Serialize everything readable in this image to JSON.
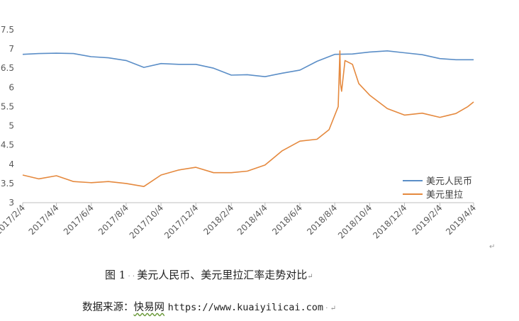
{
  "chart_data": {
    "type": "line",
    "ylim": [
      3,
      7.5
    ],
    "yticks": [
      "3",
      "3.5",
      "4",
      "4.5",
      "5",
      "5.5",
      "6",
      "6.5",
      "7",
      "7.5"
    ],
    "x_tick_labels": [
      "2017/2/4",
      "2017/4/4",
      "2017/6/4",
      "2017/8/4",
      "2017/10/4",
      "2017/12/4",
      "2018/2/4",
      "2018/4/4",
      "2018/6/4",
      "2018/8/4",
      "2018/10/4",
      "2018/12/4",
      "2019/2/4",
      "2019/4/4"
    ],
    "legend_position": "bottom-right",
    "series": [
      {
        "name": "美元人民币",
        "color": "#5b8ec7",
        "x": [
          "2017/2/4",
          "2017/3/4",
          "2017/4/4",
          "2017/5/4",
          "2017/6/4",
          "2017/7/4",
          "2017/8/4",
          "2017/9/4",
          "2017/10/4",
          "2017/11/4",
          "2017/12/4",
          "2018/1/4",
          "2018/2/4",
          "2018/3/4",
          "2018/4/4",
          "2018/5/4",
          "2018/6/4",
          "2018/7/4",
          "2018/8/4",
          "2018/9/4",
          "2018/10/4",
          "2018/11/4",
          "2018/12/4",
          "2019/1/4",
          "2019/2/4",
          "2019/3/4",
          "2019/4/4"
        ],
        "values": [
          6.86,
          6.88,
          6.89,
          6.88,
          6.8,
          6.77,
          6.7,
          6.52,
          6.62,
          6.6,
          6.6,
          6.5,
          6.32,
          6.33,
          6.28,
          6.37,
          6.45,
          6.68,
          6.86,
          6.87,
          6.92,
          6.95,
          6.9,
          6.85,
          6.75,
          6.72,
          6.72
        ]
      },
      {
        "name": "美元里拉",
        "color": "#e5893e",
        "x": [
          "2017/2/4",
          "2017/3/4",
          "2017/4/4",
          "2017/5/4",
          "2017/6/4",
          "2017/7/4",
          "2017/8/4",
          "2017/9/4",
          "2017/10/4",
          "2017/11/4",
          "2017/12/4",
          "2018/1/4",
          "2018/2/4",
          "2018/3/4",
          "2018/4/4",
          "2018/5/4",
          "2018/6/4",
          "2018/7/4",
          "2018/7/25",
          "2018/8/10",
          "2018/8/13",
          "2018/8/14",
          "2018/8/16",
          "2018/8/22",
          "2018/9/4",
          "2018/9/15",
          "2018/10/4",
          "2018/11/4",
          "2018/12/4",
          "2019/1/4",
          "2019/2/4",
          "2019/3/4",
          "2019/3/25",
          "2019/4/4"
        ],
        "values": [
          3.72,
          3.62,
          3.7,
          3.55,
          3.52,
          3.55,
          3.5,
          3.42,
          3.72,
          3.85,
          3.92,
          3.78,
          3.78,
          3.82,
          3.98,
          4.35,
          4.6,
          4.65,
          4.9,
          5.5,
          6.95,
          6.1,
          5.9,
          6.7,
          6.6,
          6.1,
          5.8,
          5.45,
          5.28,
          5.33,
          5.22,
          5.32,
          5.5,
          5.62
        ]
      }
    ]
  },
  "caption": {
    "prefix": "图 1",
    "text": "美元人民币、美元里拉汇率走势对比"
  },
  "source": {
    "label": "数据来源：",
    "site": "快易网",
    "url": "https://www.kuaiyilicai.com"
  }
}
